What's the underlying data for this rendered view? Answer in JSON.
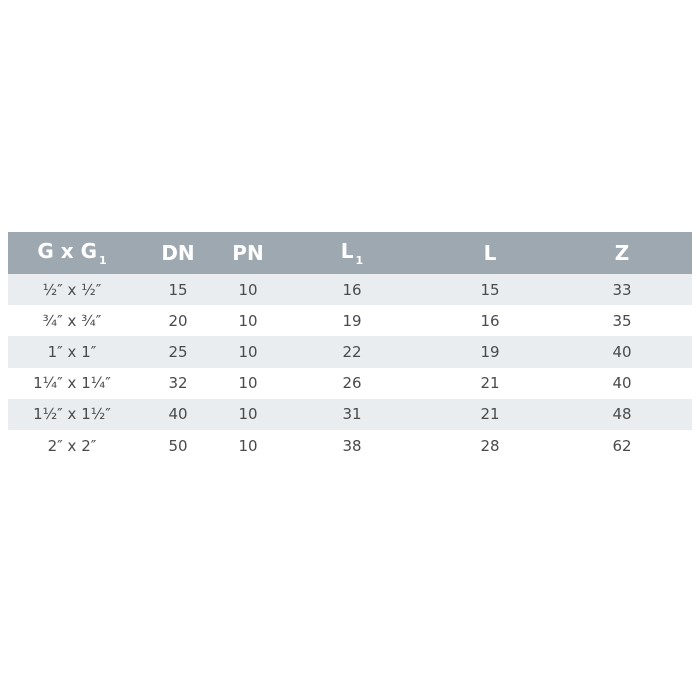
{
  "table": {
    "headers": [
      {
        "main": "G x G",
        "sub": "1"
      },
      {
        "main": "DN",
        "sub": ""
      },
      {
        "main": "PN",
        "sub": ""
      },
      {
        "main": "L",
        "sub": "1"
      },
      {
        "main": "L",
        "sub": ""
      },
      {
        "main": "Z",
        "sub": ""
      }
    ],
    "rows": [
      [
        "½″ x ½″",
        "15",
        "10",
        "16",
        "15",
        "33"
      ],
      [
        "¾″ x ¾″",
        "20",
        "10",
        "19",
        "16",
        "35"
      ],
      [
        "1″ x 1″",
        "25",
        "10",
        "22",
        "19",
        "40"
      ],
      [
        "1¼″ x 1¼″",
        "32",
        "10",
        "26",
        "21",
        "40"
      ],
      [
        "1½″ x 1½″",
        "40",
        "10",
        "31",
        "21",
        "48"
      ],
      [
        "2″ x 2″",
        "50",
        "10",
        "38",
        "28",
        "62"
      ]
    ]
  },
  "colors": {
    "header_bg": "#9ea8b0",
    "stripe": "#e9edf0",
    "text": "#4a4a4a"
  }
}
